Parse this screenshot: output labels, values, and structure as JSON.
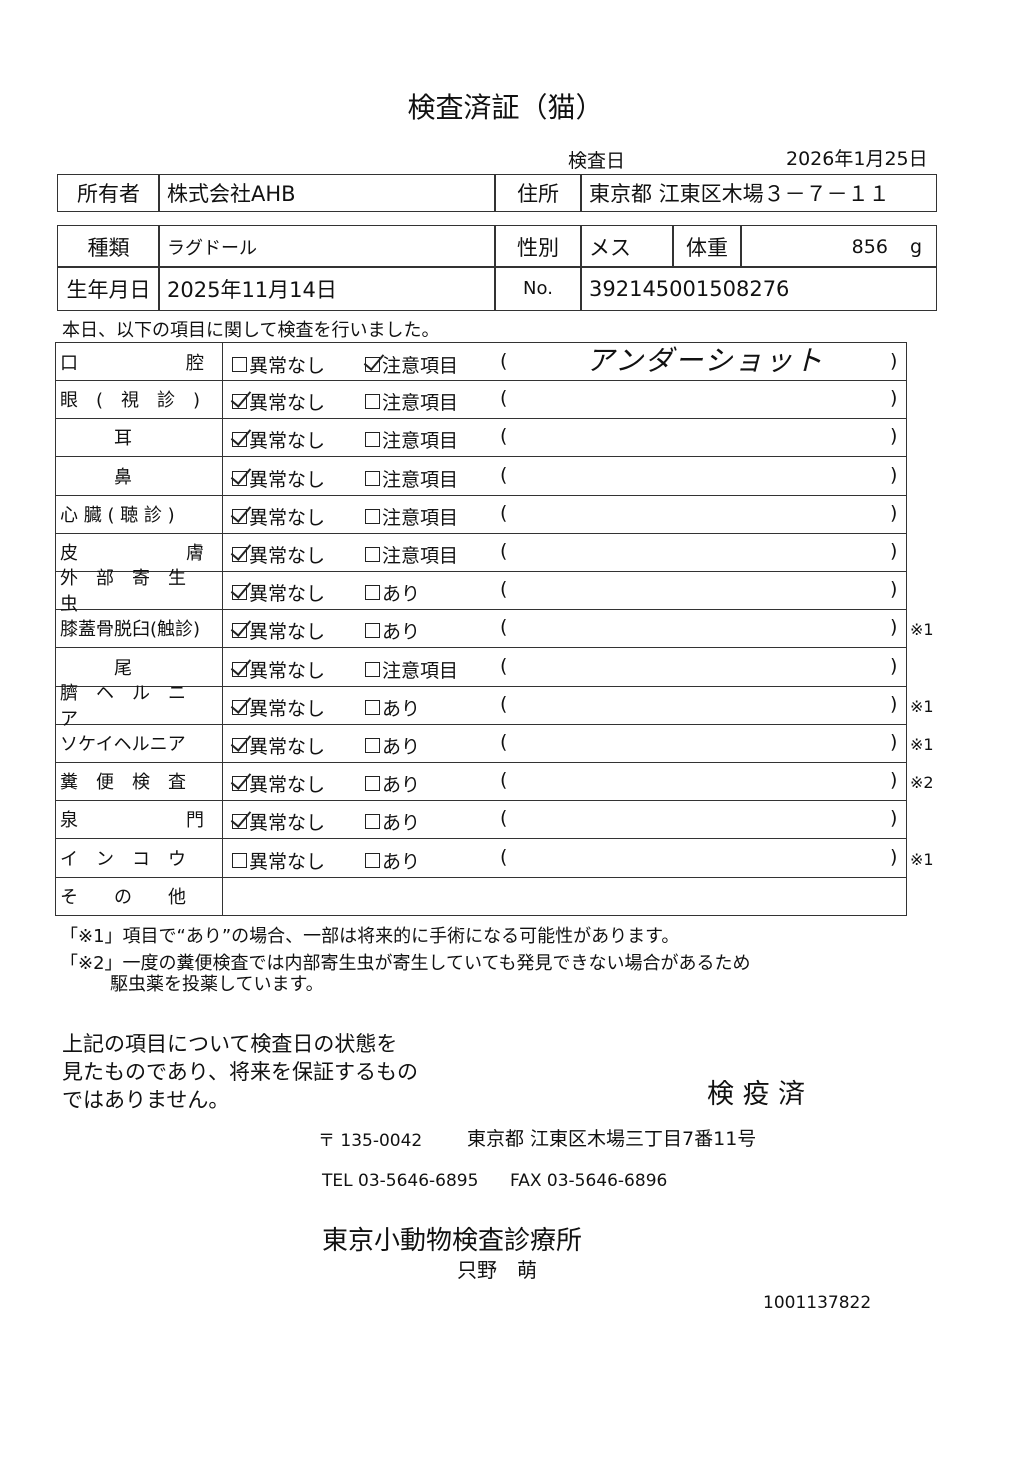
{
  "title": "検査済証（猫）",
  "exam_date_label": "検査日",
  "exam_date": "2026年1月25日",
  "owner": {
    "label": "所有者",
    "value": "株式会社AHB"
  },
  "address": {
    "label": "住所",
    "value": "東京都 江東区木場３－７－１１"
  },
  "breed": {
    "label": "種類",
    "value": "ラグドール"
  },
  "sex": {
    "label": "性別",
    "value": "メス"
  },
  "weight": {
    "label": "体重",
    "value": "856",
    "unit": "g"
  },
  "birth": {
    "label": "生年月日",
    "value": "2025年11月14日"
  },
  "no": {
    "label": "No.",
    "value": "392145001508276"
  },
  "intro": "本日、以下の項目に関して検査を行いました。",
  "items": [
    {
      "label": "口　　　　　　腔",
      "opt1": "異常なし",
      "opt2": "注意項目",
      "checked": 2,
      "note": "アンダーショット",
      "mark": ""
    },
    {
      "label": "眼　(　視　診　)",
      "opt1": "異常なし",
      "opt2": "注意項目",
      "checked": 1,
      "note": "",
      "mark": ""
    },
    {
      "label": "　　　耳",
      "opt1": "異常なし",
      "opt2": "注意項目",
      "checked": 1,
      "note": "",
      "mark": ""
    },
    {
      "label": "　　　鼻",
      "opt1": "異常なし",
      "opt2": "注意項目",
      "checked": 1,
      "note": "",
      "mark": ""
    },
    {
      "label": "心 臓 ( 聴 診 )",
      "opt1": "異常なし",
      "opt2": "注意項目",
      "checked": 1,
      "note": "",
      "mark": ""
    },
    {
      "label": "皮　　　　　　膚",
      "opt1": "異常なし",
      "opt2": "注意項目",
      "checked": 1,
      "note": "",
      "mark": ""
    },
    {
      "label": "外　部　寄　生　虫",
      "opt1": "異常なし",
      "opt2": "あり",
      "checked": 1,
      "note": "",
      "mark": ""
    },
    {
      "label": "膝蓋骨脱臼(触診)",
      "opt1": "異常なし",
      "opt2": "あり",
      "checked": 1,
      "note": "",
      "mark": "※1"
    },
    {
      "label": "　　　尾",
      "opt1": "異常なし",
      "opt2": "注意項目",
      "checked": 1,
      "note": "",
      "mark": ""
    },
    {
      "label": "臍　ヘ　ル　ニ　ア",
      "opt1": "異常なし",
      "opt2": "あり",
      "checked": 1,
      "note": "",
      "mark": "※1"
    },
    {
      "label": "ソケイヘルニア",
      "opt1": "異常なし",
      "opt2": "あり",
      "checked": 1,
      "note": "",
      "mark": "※1"
    },
    {
      "label": "糞　便　検　査",
      "opt1": "異常なし",
      "opt2": "あり",
      "checked": 1,
      "note": "",
      "mark": "※2"
    },
    {
      "label": "泉　　　　　　門",
      "opt1": "異常なし",
      "opt2": "あり",
      "checked": 1,
      "note": "",
      "mark": ""
    },
    {
      "label": "イ　ン　コ　ウ",
      "opt1": "異常なし",
      "opt2": "あり",
      "checked": 0,
      "note": "",
      "mark": "※1"
    }
  ],
  "other_label": "そ　　の　　他",
  "footnote1": "「※1」項目で“あり”の場合、一部は将来的に手術になる可能性があります。",
  "footnote2": "「※2」一度の糞便検査では内部寄生虫が寄生していても発見できない場合があるため",
  "footnote2b": "駆虫薬を投薬しています。",
  "disclaimer": [
    "上記の項目について検査日の状態を",
    "見たものであり、将来を保証するもの",
    "ではありません。"
  ],
  "stamp": "検 疫 済",
  "postal": "〒 135-0042",
  "clinic_address": "東京都 江東区木場三丁目7番11号",
  "tel": "TEL 03-5646-6895",
  "fax": "FAX 03-5646-6896",
  "clinic_name": "東京小動物検査診療所",
  "doctor": "只野　萌",
  "doc_number": "1001137822"
}
